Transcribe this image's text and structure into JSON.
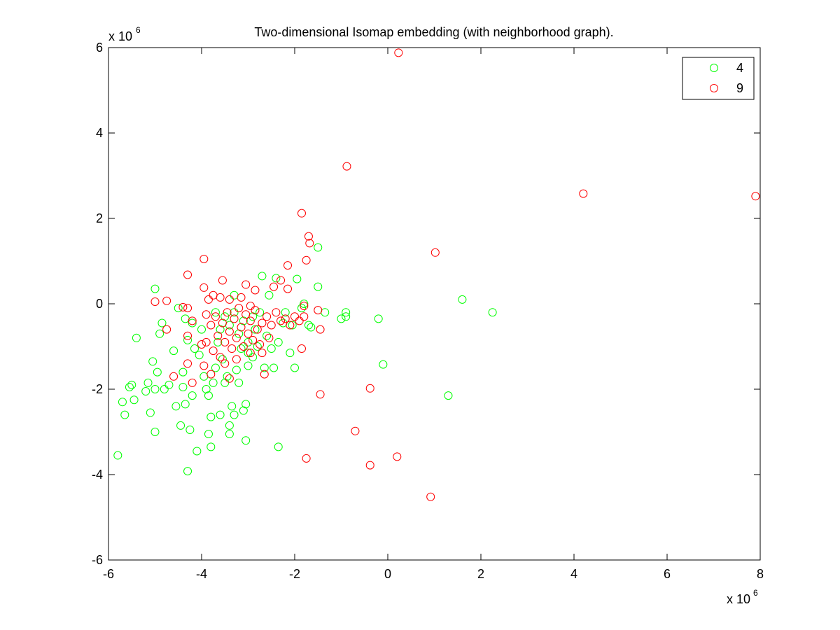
{
  "chart_data": {
    "type": "scatter",
    "title": "Two-dimensional Isomap embedding (with neighborhood graph).",
    "xlabel": "",
    "ylabel": "",
    "x_exponent_label": "x 10",
    "x_exponent": "6",
    "y_exponent_label": "x 10",
    "y_exponent": "6",
    "xlim": [
      -6,
      8
    ],
    "ylim": [
      -6,
      6
    ],
    "x_ticks": [
      "-6",
      "-4",
      "-2",
      "0",
      "2",
      "4",
      "6",
      "8"
    ],
    "y_ticks": [
      "-6",
      "-4",
      "-2",
      "0",
      "2",
      "4",
      "6"
    ],
    "grid": false,
    "legend_position": "top-right",
    "marker": "circle-open",
    "series": [
      {
        "name": "4",
        "color": "#00ff00",
        "points": [
          [
            -5.8,
            -3.55
          ],
          [
            -5.7,
            -2.3
          ],
          [
            -5.65,
            -2.6
          ],
          [
            -5.55,
            -1.95
          ],
          [
            -5.5,
            -1.9
          ],
          [
            -5.45,
            -2.25
          ],
          [
            -5.4,
            -0.8
          ],
          [
            -5.2,
            -2.05
          ],
          [
            -5.15,
            -1.85
          ],
          [
            -5.1,
            -2.55
          ],
          [
            -5.05,
            -1.35
          ],
          [
            -5.0,
            -2.0
          ],
          [
            -5.0,
            -3.0
          ],
          [
            -5.0,
            0.35
          ],
          [
            -4.95,
            -1.6
          ],
          [
            -4.9,
            -0.7
          ],
          [
            -4.85,
            -0.45
          ],
          [
            -4.8,
            -2.0
          ],
          [
            -4.7,
            -1.9
          ],
          [
            -4.6,
            -1.1
          ],
          [
            -4.55,
            -2.4
          ],
          [
            -4.5,
            -0.1
          ],
          [
            -4.45,
            -2.85
          ],
          [
            -4.4,
            -1.95
          ],
          [
            -4.4,
            -1.6
          ],
          [
            -4.35,
            -0.35
          ],
          [
            -4.35,
            -2.35
          ],
          [
            -4.3,
            -3.92
          ],
          [
            -4.3,
            -0.85
          ],
          [
            -4.25,
            -2.95
          ],
          [
            -4.2,
            -2.15
          ],
          [
            -4.2,
            -0.45
          ],
          [
            -4.15,
            -1.05
          ],
          [
            -4.1,
            -3.45
          ],
          [
            -4.05,
            -1.2
          ],
          [
            -4.0,
            -0.6
          ],
          [
            -3.95,
            -1.7
          ],
          [
            -3.9,
            -2.0
          ],
          [
            -3.85,
            -2.15
          ],
          [
            -3.85,
            -3.05
          ],
          [
            -3.8,
            -2.65
          ],
          [
            -3.8,
            -3.35
          ],
          [
            -3.75,
            -1.85
          ],
          [
            -3.7,
            -1.5
          ],
          [
            -3.65,
            -0.9
          ],
          [
            -3.6,
            -2.6
          ],
          [
            -3.55,
            -1.3
          ],
          [
            -3.5,
            -1.85
          ],
          [
            -3.45,
            -1.7
          ],
          [
            -3.4,
            -2.85
          ],
          [
            -3.4,
            -3.05
          ],
          [
            -3.35,
            -2.4
          ],
          [
            -3.3,
            -2.6
          ],
          [
            -3.25,
            -1.55
          ],
          [
            -3.2,
            -1.85
          ],
          [
            -3.15,
            -1.05
          ],
          [
            -3.1,
            -2.5
          ],
          [
            -3.05,
            -3.2
          ],
          [
            -3.05,
            -2.35
          ],
          [
            -3.0,
            -1.45
          ],
          [
            -3.0,
            -1.15
          ],
          [
            -2.9,
            -1.25
          ],
          [
            -2.85,
            -0.6
          ],
          [
            -2.8,
            -1.0
          ],
          [
            -2.75,
            -0.2
          ],
          [
            -2.7,
            0.65
          ],
          [
            -2.65,
            -1.5
          ],
          [
            -2.6,
            -0.75
          ],
          [
            -2.55,
            0.2
          ],
          [
            -2.5,
            -1.05
          ],
          [
            -2.45,
            -1.5
          ],
          [
            -2.4,
            0.6
          ],
          [
            -2.35,
            -0.9
          ],
          [
            -2.35,
            -3.35
          ],
          [
            -2.25,
            -0.45
          ],
          [
            -2.2,
            -0.2
          ],
          [
            -2.1,
            -1.15
          ],
          [
            -2.05,
            -0.5
          ],
          [
            -2.0,
            -1.5
          ],
          [
            -1.95,
            0.58
          ],
          [
            -1.85,
            -0.1
          ],
          [
            -1.8,
            0.0
          ],
          [
            -1.7,
            -0.5
          ],
          [
            -1.65,
            -0.55
          ],
          [
            -1.5,
            0.4
          ],
          [
            -1.5,
            1.32
          ],
          [
            -1.35,
            -0.2
          ],
          [
            -1.0,
            -0.35
          ],
          [
            -0.9,
            -0.3
          ],
          [
            -0.9,
            -0.2
          ],
          [
            -0.2,
            -0.35
          ],
          [
            -0.1,
            -1.42
          ],
          [
            1.3,
            -2.15
          ],
          [
            1.6,
            0.1
          ],
          [
            2.25,
            -0.2
          ],
          [
            -3.6,
            -0.6
          ],
          [
            -3.5,
            -0.3
          ],
          [
            -3.4,
            -0.5
          ],
          [
            -3.3,
            -0.2
          ],
          [
            -3.2,
            -0.7
          ],
          [
            -3.1,
            -0.4
          ],
          [
            -3.0,
            -0.9
          ],
          [
            -2.9,
            -0.3
          ],
          [
            -3.7,
            -0.2
          ],
          [
            -3.3,
            0.2
          ]
        ]
      },
      {
        "name": "9",
        "color": "#ff0000",
        "points": [
          [
            0.23,
            5.88
          ],
          [
            -0.88,
            3.22
          ],
          [
            4.2,
            2.58
          ],
          [
            7.9,
            2.52
          ],
          [
            -1.85,
            2.12
          ],
          [
            -1.7,
            1.58
          ],
          [
            -1.68,
            1.42
          ],
          [
            1.02,
            1.2
          ],
          [
            -3.95,
            1.05
          ],
          [
            -1.75,
            1.02
          ],
          [
            -2.15,
            0.9
          ],
          [
            -4.3,
            0.68
          ],
          [
            -3.55,
            0.55
          ],
          [
            -2.3,
            0.55
          ],
          [
            -2.45,
            0.4
          ],
          [
            -3.05,
            0.45
          ],
          [
            -3.95,
            0.38
          ],
          [
            -2.15,
            0.35
          ],
          [
            -2.85,
            0.32
          ],
          [
            -5.0,
            0.05
          ],
          [
            -4.75,
            0.07
          ],
          [
            -4.4,
            -0.08
          ],
          [
            -4.3,
            -0.1
          ],
          [
            -1.8,
            -0.05
          ],
          [
            -1.5,
            -0.15
          ],
          [
            -4.2,
            -0.4
          ],
          [
            -4.3,
            -0.75
          ],
          [
            -4.75,
            -0.6
          ],
          [
            -1.45,
            -0.6
          ],
          [
            -1.85,
            -1.05
          ],
          [
            -4.6,
            -1.7
          ],
          [
            -4.3,
            -1.4
          ],
          [
            -4.2,
            -1.85
          ],
          [
            -3.95,
            -1.45
          ],
          [
            -3.8,
            -1.65
          ],
          [
            -2.65,
            -1.65
          ],
          [
            -2.7,
            -1.15
          ],
          [
            -3.4,
            -1.75
          ],
          [
            -1.45,
            -2.12
          ],
          [
            -0.38,
            -1.98
          ],
          [
            -0.7,
            -2.98
          ],
          [
            -1.75,
            -3.62
          ],
          [
            -0.38,
            -3.78
          ],
          [
            0.2,
            -3.58
          ],
          [
            0.92,
            -4.52
          ],
          [
            -3.9,
            -0.9
          ],
          [
            -3.8,
            -0.5
          ],
          [
            -3.75,
            -1.1
          ],
          [
            -3.7,
            -0.3
          ],
          [
            -3.65,
            -0.75
          ],
          [
            -3.6,
            -1.25
          ],
          [
            -3.55,
            -0.45
          ],
          [
            -3.5,
            -0.9
          ],
          [
            -3.45,
            -0.2
          ],
          [
            -3.4,
            -0.65
          ],
          [
            -3.35,
            -1.05
          ],
          [
            -3.3,
            -0.35
          ],
          [
            -3.25,
            -0.8
          ],
          [
            -3.2,
            -0.1
          ],
          [
            -3.15,
            -0.55
          ],
          [
            -3.1,
            -1.0
          ],
          [
            -3.05,
            -0.25
          ],
          [
            -3.0,
            -0.7
          ],
          [
            -2.95,
            -0.4
          ],
          [
            -2.9,
            -0.85
          ],
          [
            -2.85,
            -0.15
          ],
          [
            -2.8,
            -0.6
          ],
          [
            -2.7,
            -0.45
          ],
          [
            -2.6,
            -0.3
          ],
          [
            -2.5,
            -0.5
          ],
          [
            -2.4,
            -0.2
          ],
          [
            -2.3,
            -0.4
          ],
          [
            -2.2,
            -0.35
          ],
          [
            -2.1,
            -0.5
          ],
          [
            -2.0,
            -0.3
          ],
          [
            -1.9,
            -0.4
          ],
          [
            -1.8,
            -0.3
          ],
          [
            -3.85,
            0.1
          ],
          [
            -3.75,
            0.2
          ],
          [
            -3.6,
            0.15
          ],
          [
            -3.4,
            0.1
          ],
          [
            -3.15,
            0.15
          ],
          [
            -2.95,
            -0.05
          ],
          [
            -2.75,
            -0.95
          ],
          [
            -2.55,
            -0.8
          ],
          [
            -3.9,
            -0.25
          ],
          [
            -4.0,
            -0.95
          ],
          [
            -3.5,
            -1.4
          ],
          [
            -3.25,
            -1.3
          ],
          [
            -2.95,
            -1.15
          ]
        ]
      }
    ]
  }
}
